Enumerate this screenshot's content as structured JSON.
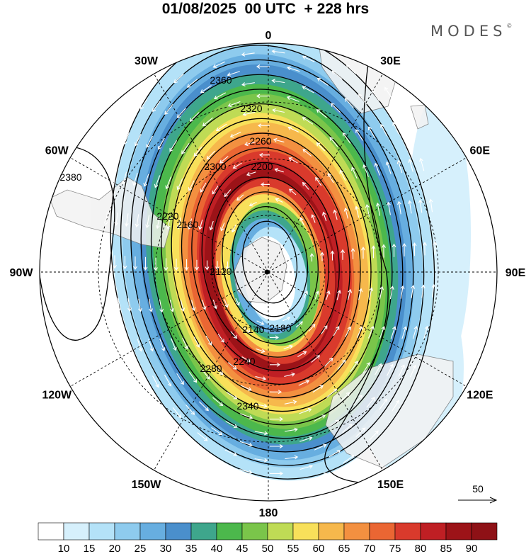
{
  "title": "01/08/2025  00 UTC  + 228 hrs",
  "brand": "MODES",
  "brand_mark": "©",
  "meridian_labels": [
    {
      "text": "0",
      "angle": 0
    },
    {
      "text": "30E",
      "angle": 30
    },
    {
      "text": "60E",
      "angle": 60
    },
    {
      "text": "90E",
      "angle": 90
    },
    {
      "text": "120E",
      "angle": 120
    },
    {
      "text": "150E",
      "angle": 150
    },
    {
      "text": "180",
      "angle": 180
    },
    {
      "text": "150W",
      "angle": 210
    },
    {
      "text": "120W",
      "angle": 240
    },
    {
      "text": "90W",
      "angle": 270
    },
    {
      "text": "60W",
      "angle": 300
    },
    {
      "text": "30W",
      "angle": 330
    }
  ],
  "contour_labels": [
    "2120",
    "2140",
    "2160",
    "2180",
    "2200",
    "2220",
    "2240",
    "2260",
    "2280",
    "2300",
    "2320",
    "2340",
    "2360",
    "2380"
  ],
  "vector_reference": "50",
  "colorbar": {
    "labels": [
      "10",
      "15",
      "20",
      "25",
      "30",
      "35",
      "40",
      "45",
      "50",
      "55",
      "60",
      "65",
      "70",
      "75",
      "80",
      "85",
      "90"
    ],
    "colors": [
      "#ffffff",
      "#d6f0fc",
      "#b4e2f8",
      "#8ecbee",
      "#67aee0",
      "#4a8fcc",
      "#3ea68c",
      "#4cb84c",
      "#7ac54a",
      "#bfdb55",
      "#f8e05a",
      "#f6b84c",
      "#f39040",
      "#ea6633",
      "#d93a2c",
      "#bf1f24",
      "#9c1318",
      "#8e1116"
    ]
  },
  "icons": [
    "north-pole-marker-icon",
    "reference-arrow-icon"
  ]
}
